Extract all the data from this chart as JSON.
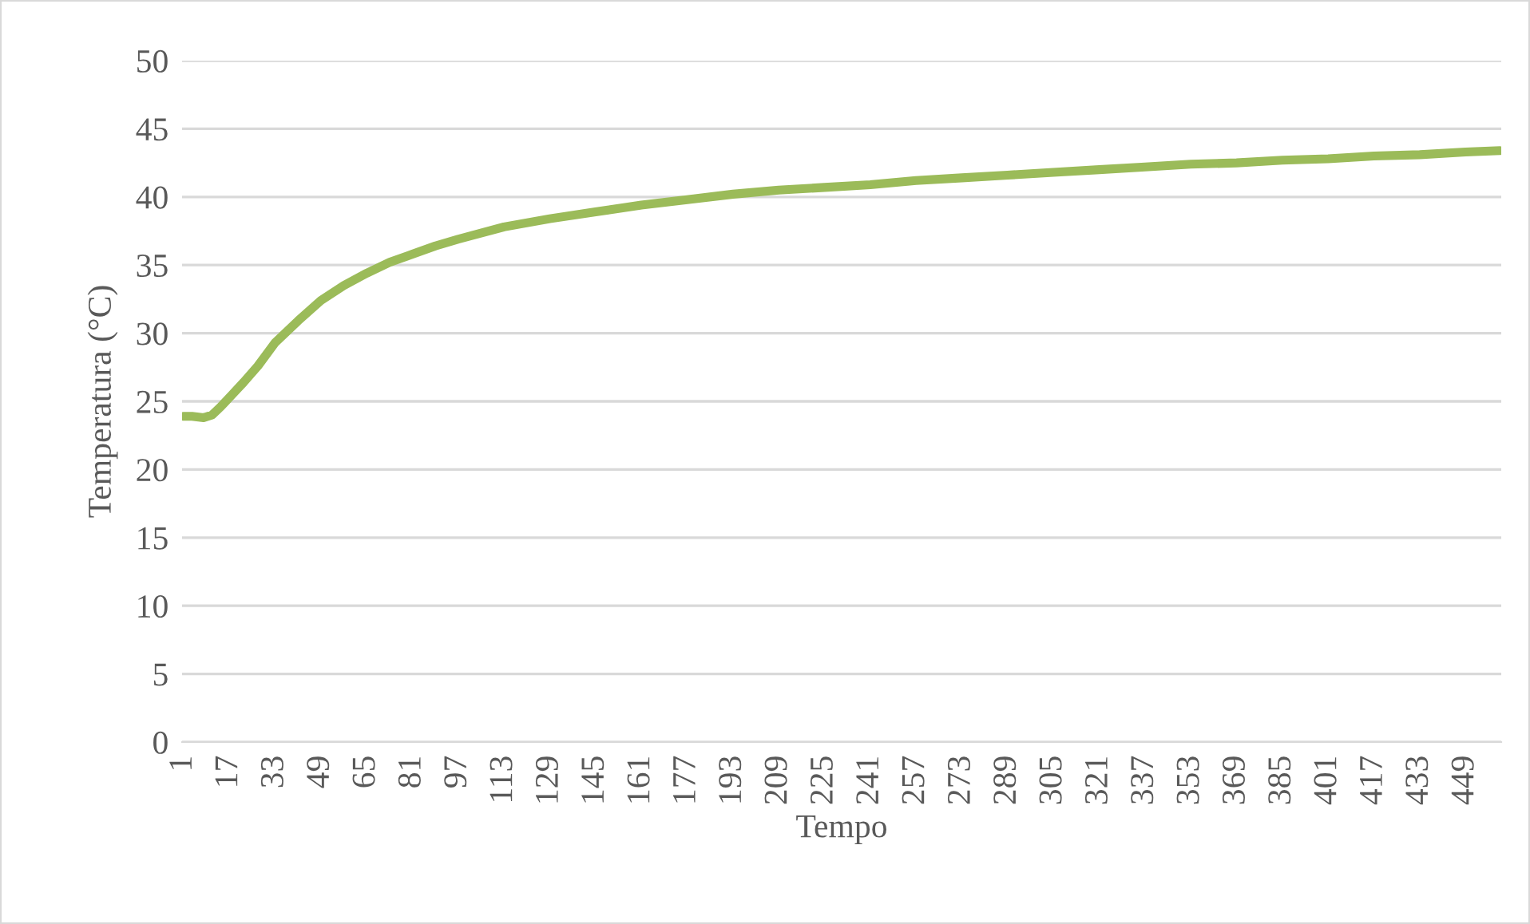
{
  "chart_data": {
    "type": "line",
    "xlabel": "Tempo",
    "ylabel": "Temperatura (°C)",
    "xlim": [
      0.5,
      461.5
    ],
    "xticks": [
      1,
      17,
      33,
      49,
      65,
      81,
      97,
      113,
      129,
      145,
      161,
      177,
      193,
      209,
      225,
      241,
      257,
      273,
      289,
      305,
      321,
      337,
      353,
      369,
      385,
      401,
      417,
      433,
      449
    ],
    "ylim": [
      0,
      50
    ],
    "yticks": [
      0,
      5,
      10,
      15,
      20,
      25,
      30,
      35,
      40,
      45,
      50
    ],
    "grid": "y",
    "legend": false,
    "marker": "none",
    "line_style": "solid",
    "series": [
      {
        "color": "#9bbb59",
        "x": [
          1,
          4,
          8,
          11,
          14,
          18,
          22,
          27,
          33,
          41,
          49,
          57,
          65,
          73,
          81,
          89,
          97,
          113,
          129,
          145,
          161,
          177,
          193,
          209,
          225,
          241,
          257,
          273,
          289,
          305,
          321,
          337,
          353,
          369,
          385,
          401,
          417,
          433,
          449,
          461
        ],
        "values": [
          23.9,
          23.9,
          23.8,
          24.0,
          24.6,
          25.5,
          26.4,
          27.6,
          29.3,
          30.9,
          32.4,
          33.5,
          34.4,
          35.2,
          35.8,
          36.4,
          36.9,
          37.8,
          38.4,
          38.9,
          39.4,
          39.8,
          40.2,
          40.5,
          40.7,
          40.9,
          41.2,
          41.4,
          41.6,
          41.8,
          42.0,
          42.2,
          42.4,
          42.5,
          42.7,
          42.8,
          43.0,
          43.1,
          43.3,
          43.4
        ]
      }
    ]
  }
}
